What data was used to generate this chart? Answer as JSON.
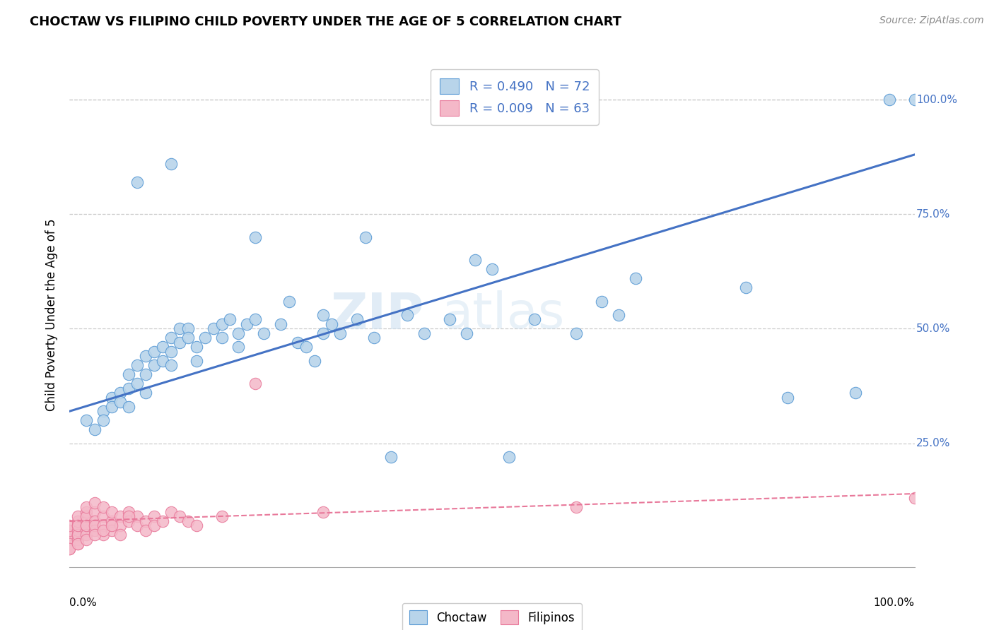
{
  "title": "CHOCTAW VS FILIPINO CHILD POVERTY UNDER THE AGE OF 5 CORRELATION CHART",
  "source": "Source: ZipAtlas.com",
  "ylabel": "Child Poverty Under the Age of 5",
  "watermark_zip": "ZIP",
  "watermark_atlas": "atlas",
  "choctaw_R": 0.49,
  "choctaw_N": 72,
  "filipino_R": 0.009,
  "filipino_N": 63,
  "choctaw_color": "#b8d4ea",
  "choctaw_edge": "#5b9bd5",
  "filipino_color": "#f4b8c8",
  "filipino_edge": "#e8789a",
  "trendline_choctaw": "#4472c4",
  "trendline_filipino": "#e8789a",
  "ytick_color": "#4472c4",
  "legend_color": "#4472c4",
  "ytick_labels": [
    "25.0%",
    "50.0%",
    "75.0%",
    "100.0%"
  ],
  "ytick_values": [
    0.25,
    0.5,
    0.75,
    1.0
  ],
  "xlim": [
    0.0,
    1.0
  ],
  "ylim": [
    -0.02,
    1.08
  ],
  "choctaw_trend_start": 0.32,
  "choctaw_trend_end": 0.88,
  "filipino_trend_start": 0.08,
  "filipino_trend_end": 0.14,
  "choctaw_x": [
    0.02,
    0.03,
    0.04,
    0.04,
    0.05,
    0.05,
    0.06,
    0.06,
    0.07,
    0.07,
    0.07,
    0.08,
    0.08,
    0.09,
    0.09,
    0.09,
    0.1,
    0.1,
    0.11,
    0.11,
    0.12,
    0.12,
    0.12,
    0.13,
    0.13,
    0.14,
    0.14,
    0.15,
    0.15,
    0.16,
    0.17,
    0.18,
    0.18,
    0.19,
    0.2,
    0.2,
    0.21,
    0.22,
    0.23,
    0.25,
    0.26,
    0.27,
    0.28,
    0.29,
    0.3,
    0.3,
    0.31,
    0.32,
    0.34,
    0.36,
    0.38,
    0.4,
    0.42,
    0.45,
    0.47,
    0.48,
    0.5,
    0.52,
    0.55,
    0.6,
    0.63,
    0.65,
    0.67,
    0.08,
    0.12,
    0.22,
    0.35,
    0.8,
    0.85,
    0.93,
    0.97,
    1.0
  ],
  "choctaw_y": [
    0.3,
    0.28,
    0.32,
    0.3,
    0.35,
    0.33,
    0.36,
    0.34,
    0.37,
    0.4,
    0.33,
    0.42,
    0.38,
    0.44,
    0.4,
    0.36,
    0.45,
    0.42,
    0.46,
    0.43,
    0.48,
    0.45,
    0.42,
    0.5,
    0.47,
    0.5,
    0.48,
    0.46,
    0.43,
    0.48,
    0.5,
    0.51,
    0.48,
    0.52,
    0.49,
    0.46,
    0.51,
    0.52,
    0.49,
    0.51,
    0.56,
    0.47,
    0.46,
    0.43,
    0.49,
    0.53,
    0.51,
    0.49,
    0.52,
    0.48,
    0.22,
    0.53,
    0.49,
    0.52,
    0.49,
    0.65,
    0.63,
    0.22,
    0.52,
    0.49,
    0.56,
    0.53,
    0.61,
    0.82,
    0.86,
    0.7,
    0.7,
    0.59,
    0.35,
    0.36,
    1.0,
    1.0
  ],
  "filipino_x": [
    0.0,
    0.0,
    0.0,
    0.0,
    0.0,
    0.0,
    0.01,
    0.01,
    0.01,
    0.01,
    0.01,
    0.01,
    0.01,
    0.01,
    0.01,
    0.02,
    0.02,
    0.02,
    0.02,
    0.02,
    0.02,
    0.02,
    0.02,
    0.03,
    0.03,
    0.03,
    0.03,
    0.03,
    0.04,
    0.04,
    0.04,
    0.04,
    0.05,
    0.05,
    0.05,
    0.06,
    0.06,
    0.06,
    0.07,
    0.07,
    0.08,
    0.08,
    0.09,
    0.09,
    0.1,
    0.1,
    0.11,
    0.12,
    0.13,
    0.14,
    0.15,
    0.18,
    0.22,
    0.0,
    0.01,
    0.02,
    0.03,
    0.04,
    0.05,
    0.07,
    0.3,
    0.6,
    1.0
  ],
  "filipino_y": [
    0.04,
    0.05,
    0.06,
    0.03,
    0.07,
    0.02,
    0.05,
    0.07,
    0.04,
    0.06,
    0.08,
    0.03,
    0.09,
    0.05,
    0.07,
    0.08,
    0.06,
    0.1,
    0.07,
    0.09,
    0.11,
    0.05,
    0.07,
    0.1,
    0.08,
    0.06,
    0.12,
    0.07,
    0.09,
    0.07,
    0.11,
    0.05,
    0.08,
    0.1,
    0.06,
    0.09,
    0.07,
    0.05,
    0.1,
    0.08,
    0.09,
    0.07,
    0.08,
    0.06,
    0.09,
    0.07,
    0.08,
    0.1,
    0.09,
    0.08,
    0.07,
    0.09,
    0.38,
    0.02,
    0.03,
    0.04,
    0.05,
    0.06,
    0.07,
    0.09,
    0.1,
    0.11,
    0.13
  ]
}
